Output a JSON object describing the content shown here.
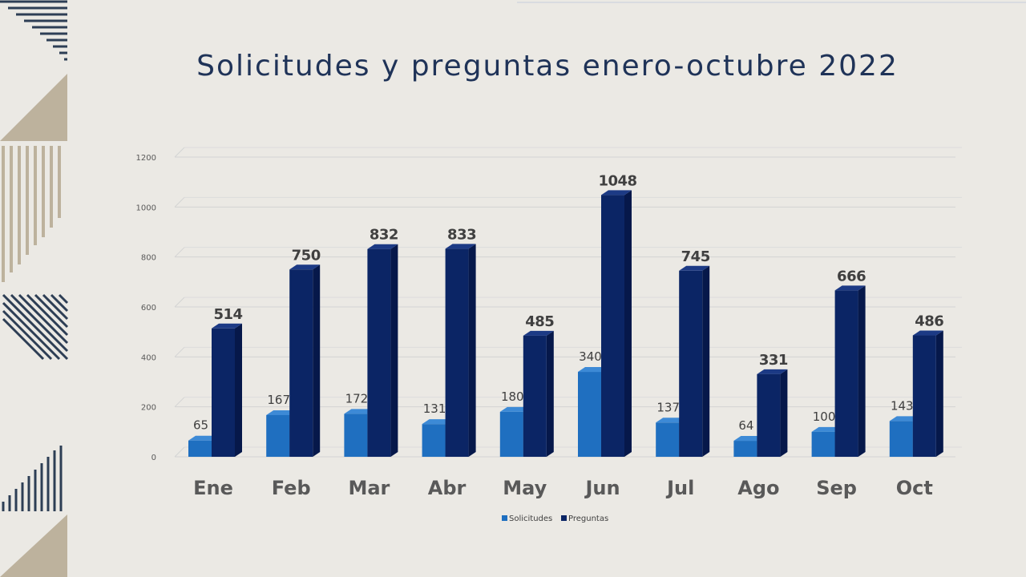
{
  "title": "Solicitudes y preguntas enero-octubre 2022",
  "colors": {
    "solicitudes_front": "#1f6fc0",
    "solicitudes_top": "#3d8ad6",
    "solicitudes_side": "#15528f",
    "preguntas_front": "#0b2565",
    "preguntas_top": "#1c3a85",
    "preguntas_side": "#06184a",
    "grid": "#d3d3d3",
    "title": "#1f3358"
  },
  "chart_data": {
    "type": "bar",
    "title": "Solicitudes y preguntas enero-octubre 2022",
    "categories": [
      "Ene",
      "Feb",
      "Mar",
      "Abr",
      "May",
      "Jun",
      "Jul",
      "Ago",
      "Sep",
      "Oct"
    ],
    "series": [
      {
        "name": "Solicitudes",
        "values": [
          65,
          167,
          172,
          131,
          180,
          340,
          137,
          64,
          100,
          143
        ]
      },
      {
        "name": "Preguntas",
        "values": [
          514,
          750,
          832,
          833,
          485,
          1048,
          745,
          331,
          666,
          486
        ]
      }
    ],
    "yticks": [
      0,
      200,
      400,
      600,
      800,
      1000,
      1200
    ],
    "ylim": [
      0,
      1200
    ],
    "grid": true,
    "legend": "bottom",
    "xlabel": "",
    "ylabel": ""
  }
}
